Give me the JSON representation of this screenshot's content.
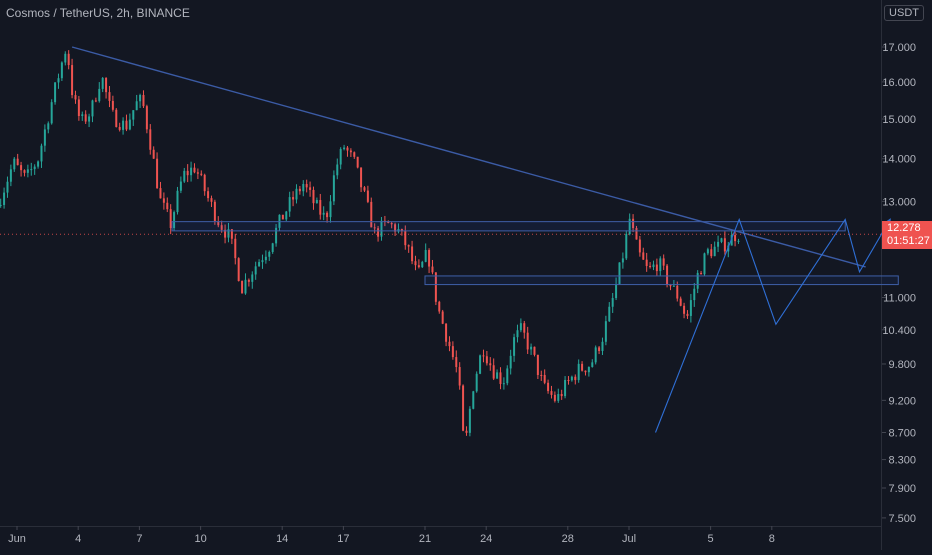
{
  "header": {
    "title": "Cosmos / TetherUS, 2h, BINANCE",
    "currency": "USDT"
  },
  "last_price": {
    "price": "12.278",
    "countdown": "01:51:27",
    "value": 12.278
  },
  "colors": {
    "background": "#131722",
    "up": "#26a69a",
    "down": "#ef5350",
    "drawing": "#2962ff",
    "trendline": "#3b5ba5"
  },
  "chart_data": {
    "type": "candlestick",
    "title": "Cosmos / TetherUS, 2h, BINANCE",
    "y_scale": "log",
    "ylim": [
      7.3,
      18.6
    ],
    "y_ticks": [
      17.0,
      16.0,
      15.0,
      14.0,
      13.0,
      11.0,
      10.4,
      9.8,
      9.2,
      8.7,
      8.3,
      7.9,
      7.5
    ],
    "y_tick_labels": [
      "17.000",
      "16.000",
      "15.000",
      "14.000",
      "13.000",
      "11.000",
      "10.400",
      "9.800",
      "9.200",
      "8.700",
      "8.300",
      "7.900",
      "7.500"
    ],
    "x_range_days": [
      0.2,
      38.0
    ],
    "x_ticks": [
      {
        "label": "Jun",
        "day": 1
      },
      {
        "label": "4",
        "day": 4
      },
      {
        "label": "7",
        "day": 7
      },
      {
        "label": "10",
        "day": 10
      },
      {
        "label": "14",
        "day": 14
      },
      {
        "label": "17",
        "day": 17
      },
      {
        "label": "21",
        "day": 21
      },
      {
        "label": "24",
        "day": 24
      },
      {
        "label": "28",
        "day": 28
      },
      {
        "label": "Jul",
        "day": 31
      },
      {
        "label": "5",
        "day": 35
      },
      {
        "label": "8",
        "day": 38
      }
    ],
    "price_path": [
      {
        "x": 0.2,
        "y": 12.9
      },
      {
        "x": 1.0,
        "y": 13.9
      },
      {
        "x": 1.6,
        "y": 13.5
      },
      {
        "x": 2.2,
        "y": 14.0
      },
      {
        "x": 2.8,
        "y": 15.3
      },
      {
        "x": 3.3,
        "y": 16.4
      },
      {
        "x": 3.6,
        "y": 17.05
      },
      {
        "x": 3.9,
        "y": 15.6
      },
      {
        "x": 4.3,
        "y": 14.9
      },
      {
        "x": 4.8,
        "y": 15.2
      },
      {
        "x": 5.3,
        "y": 16.2
      },
      {
        "x": 5.8,
        "y": 15.1
      },
      {
        "x": 6.5,
        "y": 14.8
      },
      {
        "x": 7.0,
        "y": 15.4
      },
      {
        "x": 7.3,
        "y": 15.5
      },
      {
        "x": 7.7,
        "y": 14.4
      },
      {
        "x": 8.2,
        "y": 13.0
      },
      {
        "x": 8.7,
        "y": 12.5
      },
      {
        "x": 9.3,
        "y": 13.6
      },
      {
        "x": 9.9,
        "y": 13.8
      },
      {
        "x": 10.5,
        "y": 13.1
      },
      {
        "x": 11.0,
        "y": 12.6
      },
      {
        "x": 11.6,
        "y": 12.2
      },
      {
        "x": 12.2,
        "y": 11.2
      },
      {
        "x": 12.8,
        "y": 11.6
      },
      {
        "x": 13.5,
        "y": 12.0
      },
      {
        "x": 14.0,
        "y": 12.5
      },
      {
        "x": 14.6,
        "y": 13.0
      },
      {
        "x": 15.2,
        "y": 13.4
      },
      {
        "x": 15.8,
        "y": 12.9
      },
      {
        "x": 16.3,
        "y": 12.6
      },
      {
        "x": 16.8,
        "y": 13.8
      },
      {
        "x": 17.2,
        "y": 14.3
      },
      {
        "x": 17.7,
        "y": 13.9
      },
      {
        "x": 18.2,
        "y": 13.1
      },
      {
        "x": 18.7,
        "y": 12.3
      },
      {
        "x": 19.3,
        "y": 12.5
      },
      {
        "x": 19.8,
        "y": 12.4
      },
      {
        "x": 20.3,
        "y": 12.0
      },
      {
        "x": 20.8,
        "y": 11.4
      },
      {
        "x": 21.3,
        "y": 11.9
      },
      {
        "x": 21.8,
        "y": 10.8
      },
      {
        "x": 22.3,
        "y": 10.2
      },
      {
        "x": 22.8,
        "y": 9.6
      },
      {
        "x": 23.1,
        "y": 8.4
      },
      {
        "x": 23.5,
        "y": 9.4
      },
      {
        "x": 24.0,
        "y": 10.1
      },
      {
        "x": 24.5,
        "y": 9.7
      },
      {
        "x": 25.0,
        "y": 9.5
      },
      {
        "x": 25.5,
        "y": 10.2
      },
      {
        "x": 25.9,
        "y": 10.4
      },
      {
        "x": 26.5,
        "y": 9.9
      },
      {
        "x": 27.0,
        "y": 9.4
      },
      {
        "x": 27.6,
        "y": 9.2
      },
      {
        "x": 28.2,
        "y": 9.5
      },
      {
        "x": 28.7,
        "y": 9.7
      },
      {
        "x": 29.3,
        "y": 9.8
      },
      {
        "x": 29.9,
        "y": 10.3
      },
      {
        "x": 30.4,
        "y": 11.0
      },
      {
        "x": 30.9,
        "y": 11.9
      },
      {
        "x": 31.2,
        "y": 12.6
      },
      {
        "x": 31.6,
        "y": 11.9
      },
      {
        "x": 32.1,
        "y": 11.5
      },
      {
        "x": 32.6,
        "y": 11.7
      },
      {
        "x": 33.1,
        "y": 11.3
      },
      {
        "x": 33.6,
        "y": 11.0
      },
      {
        "x": 34.0,
        "y": 10.6
      },
      {
        "x": 34.5,
        "y": 11.4
      },
      {
        "x": 35.0,
        "y": 11.9
      },
      {
        "x": 35.5,
        "y": 12.0
      },
      {
        "x": 36.0,
        "y": 12.1
      },
      {
        "x": 36.4,
        "y": 12.28
      }
    ],
    "drawings": {
      "trendline": [
        {
          "x": 3.7,
          "y": 17.0
        },
        {
          "x": 42.6,
          "y": 11.6
        }
      ],
      "upper_zone": {
        "x_start": 8.6,
        "x_end": 41.6,
        "y_low": 12.35,
        "y_high": 12.55
      },
      "lower_zone": {
        "x_start": 21.0,
        "x_end": 44.2,
        "y_low": 11.25,
        "y_high": 11.42
      },
      "projection_path": [
        {
          "x": 32.3,
          "y": 8.7
        },
        {
          "x": 36.4,
          "y": 12.6
        },
        {
          "x": 38.2,
          "y": 10.5
        },
        {
          "x": 41.6,
          "y": 12.6
        },
        {
          "x": 42.3,
          "y": 11.5
        },
        {
          "x": 43.8,
          "y": 12.6
        }
      ]
    }
  }
}
